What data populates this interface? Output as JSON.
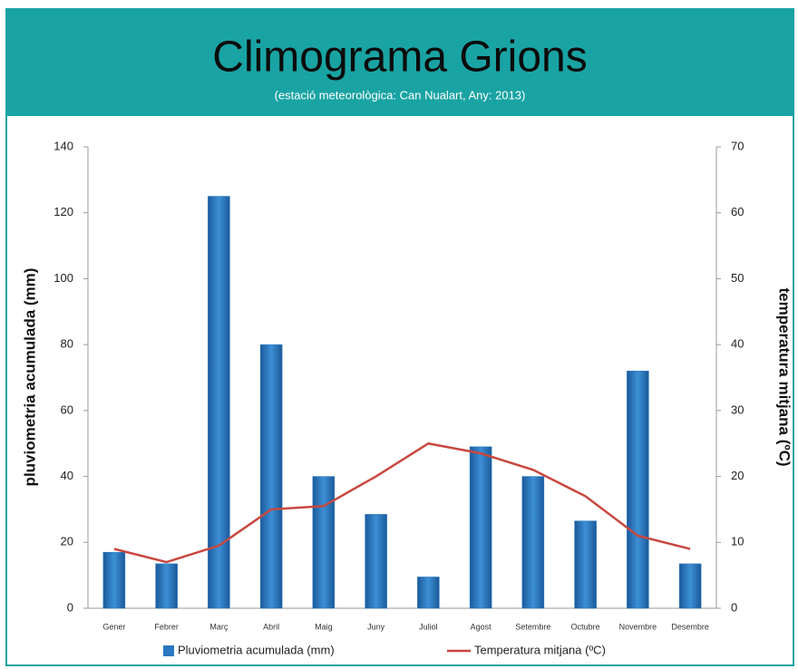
{
  "chart_data": {
    "type": "bar_line",
    "title": "Climograma Grions",
    "subtitle": "(estació meteorològica: Can Nualart, Any: 2013)",
    "y_label": "pluviometria acumulada (mm)",
    "y2_label": "temperatura mitjana (ºC)",
    "categories": [
      "Gener",
      "Febrer",
      "Març",
      "Abril",
      "Maig",
      "Juny",
      "Juliol",
      "Agost",
      "Setembre",
      "Octubre",
      "Novembre",
      "Desembre"
    ],
    "series": [
      {
        "name": "Pluviometria acumulada (mm)",
        "type": "bar",
        "color": "#2a78c2",
        "values": [
          17,
          13.5,
          125,
          80,
          40,
          28.5,
          9.5,
          49,
          40,
          26.5,
          72,
          13.5
        ]
      },
      {
        "name": "Temperatura mitjana (ºC)",
        "type": "line",
        "axis": "y2",
        "color": "#c9473f",
        "values": [
          9,
          7,
          9.5,
          15,
          15.5,
          20,
          25,
          23.5,
          21,
          17,
          11,
          9
        ]
      }
    ],
    "ylim": [
      0,
      140
    ],
    "yticks": [
      0,
      20,
      40,
      60,
      80,
      100,
      120,
      140
    ],
    "y2lim": [
      0,
      70
    ],
    "y2ticks": [
      0,
      10,
      20,
      30,
      40,
      50,
      60,
      70
    ],
    "legend": "bottom"
  }
}
